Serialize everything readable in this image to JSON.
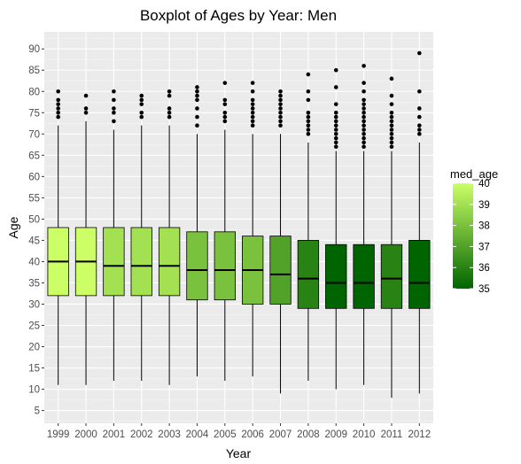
{
  "chart_data": {
    "type": "boxplot",
    "title": "Boxplot of Ages by Year: Men",
    "xlabel": "Year",
    "ylabel": "Age",
    "ylim": [
      2,
      94
    ],
    "yticks": [
      5,
      10,
      15,
      20,
      25,
      30,
      35,
      40,
      45,
      50,
      55,
      60,
      65,
      70,
      75,
      80,
      85,
      90
    ],
    "grid": true,
    "legend_position": "right",
    "legend": {
      "title": "med_age",
      "min": 35,
      "max": 40,
      "ticks": [
        40,
        39,
        38,
        37,
        36,
        35
      ],
      "color_low": "#006400",
      "color_high": "#ccff66"
    },
    "categories": [
      "1999",
      "2000",
      "2001",
      "2002",
      "2003",
      "2004",
      "2005",
      "2006",
      "2007",
      "2008",
      "2009",
      "2010",
      "2011",
      "2012"
    ],
    "boxes": [
      {
        "year": "1999",
        "min": 11,
        "q1": 32,
        "median": 40,
        "q3": 48,
        "max": 72,
        "outliers": [
          74,
          75,
          76,
          77,
          78,
          80
        ]
      },
      {
        "year": "2000",
        "min": 11,
        "q1": 32,
        "median": 40,
        "q3": 48,
        "max": 73,
        "outliers": [
          75,
          76,
          79
        ]
      },
      {
        "year": "2001",
        "min": 12,
        "q1": 32,
        "median": 39,
        "q3": 48,
        "max": 71,
        "outliers": [
          73,
          75,
          76,
          78,
          80
        ]
      },
      {
        "year": "2002",
        "min": 12,
        "q1": 32,
        "median": 39,
        "q3": 48,
        "max": 72,
        "outliers": [
          74,
          75,
          77,
          78,
          79
        ]
      },
      {
        "year": "2003",
        "min": 11,
        "q1": 32,
        "median": 39,
        "q3": 48,
        "max": 72,
        "outliers": [
          74,
          75,
          76,
          79,
          80
        ]
      },
      {
        "year": "2004",
        "min": 13,
        "q1": 31,
        "median": 38,
        "q3": 47,
        "max": 70,
        "outliers": [
          72,
          74,
          76,
          78,
          79,
          80,
          81
        ]
      },
      {
        "year": "2005",
        "min": 12,
        "q1": 31,
        "median": 38,
        "q3": 47,
        "max": 71,
        "outliers": [
          73,
          74,
          75,
          77,
          78,
          82
        ]
      },
      {
        "year": "2006",
        "min": 13,
        "q1": 30,
        "median": 38,
        "q3": 46,
        "max": 70,
        "outliers": [
          72,
          73,
          74,
          75,
          76,
          77,
          78,
          80,
          82
        ]
      },
      {
        "year": "2007",
        "min": 9,
        "q1": 30,
        "median": 37,
        "q3": 46,
        "max": 70,
        "outliers": [
          72,
          73,
          74,
          75,
          76,
          77,
          78,
          79,
          80
        ]
      },
      {
        "year": "2008",
        "min": 12,
        "q1": 29,
        "median": 36,
        "q3": 45,
        "max": 68,
        "outliers": [
          70,
          71,
          72,
          73,
          74,
          75,
          78,
          80,
          84
        ]
      },
      {
        "year": "2009",
        "min": 10,
        "q1": 29,
        "median": 35,
        "q3": 44,
        "max": 66,
        "outliers": [
          67,
          68,
          69,
          70,
          71,
          72,
          73,
          74,
          75,
          77,
          81,
          85
        ]
      },
      {
        "year": "2010",
        "min": 11,
        "q1": 29,
        "median": 35,
        "q3": 44,
        "max": 66,
        "outliers": [
          67,
          68,
          69,
          70,
          71,
          72,
          73,
          74,
          75,
          76,
          77,
          78,
          80,
          82,
          86
        ]
      },
      {
        "year": "2011",
        "min": 8,
        "q1": 29,
        "median": 36,
        "q3": 44,
        "max": 66,
        "outliers": [
          67,
          68,
          69,
          70,
          71,
          72,
          73,
          74,
          75,
          77,
          79,
          83
        ]
      },
      {
        "year": "2012",
        "min": 9,
        "q1": 29,
        "median": 35,
        "q3": 45,
        "max": 68,
        "outliers": [
          70,
          71,
          72,
          74,
          76,
          80,
          89
        ]
      }
    ]
  }
}
